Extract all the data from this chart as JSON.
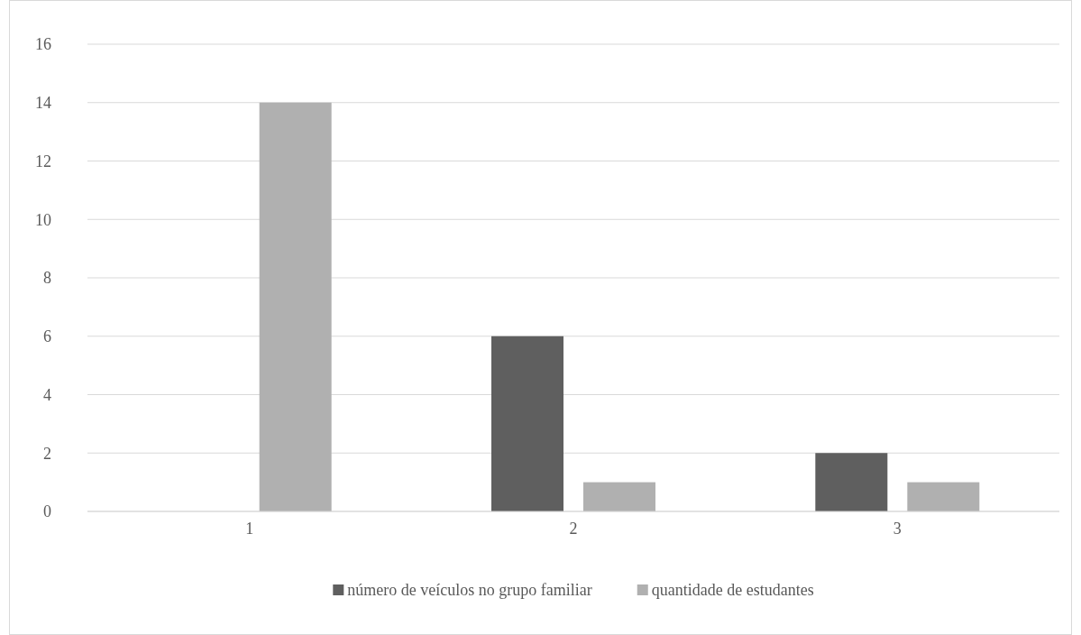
{
  "chart_data": {
    "type": "bar",
    "categories": [
      "1",
      "2",
      "3"
    ],
    "series": [
      {
        "name": "número de veículos no grupo familiar",
        "color": "#5f5f5f",
        "values": [
          null,
          6,
          2
        ]
      },
      {
        "name": "quantidade de estudantes",
        "color": "#b0b0b0",
        "values": [
          14,
          1,
          1
        ]
      }
    ],
    "ylim": [
      0,
      16
    ],
    "yticks": [
      0,
      2,
      4,
      6,
      8,
      10,
      12,
      14,
      16
    ],
    "grid": "y",
    "legend": "bottom"
  }
}
